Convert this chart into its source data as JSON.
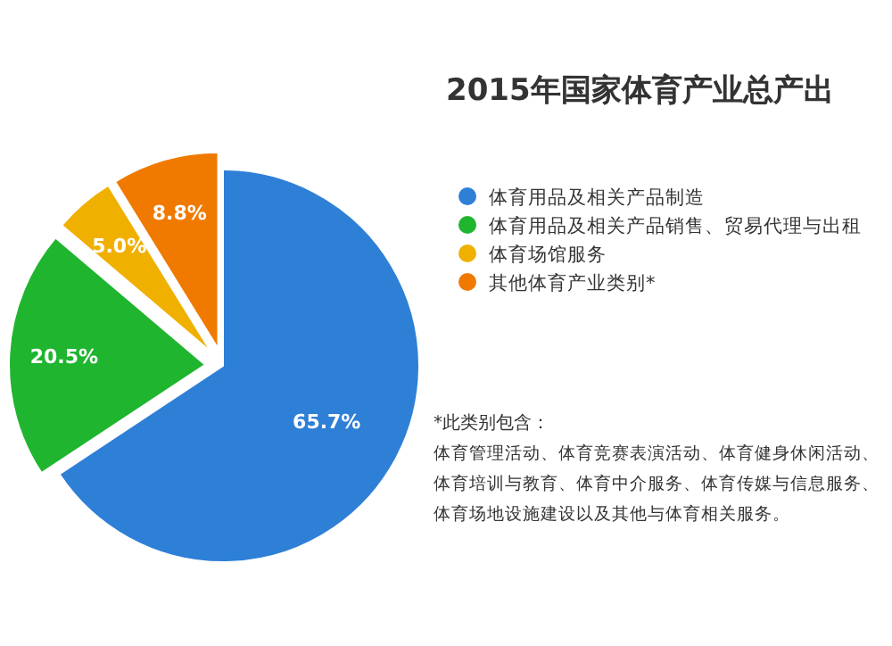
{
  "chart_data": {
    "type": "pie",
    "title": "2015年国家体育产业总产出",
    "categories": [
      "体育用品及相关产品制造",
      "体育用品及相关产品销售、贸易代理与出租",
      "体育场馆服务",
      "其他体育产业类别*"
    ],
    "values": [
      65.7,
      20.5,
      5.0,
      8.8
    ],
    "colors": [
      "#2e7fd6",
      "#1fb52f",
      "#f0b000",
      "#f07a00"
    ],
    "value_labels": [
      "65.7%",
      "20.5%",
      "5.0%",
      "8.8%"
    ],
    "legend": "right",
    "annotations": [
      "*此类别包含：",
      "体育管理活动、体育竞赛表演活动、体育健身休闲活动、",
      "体育培训与教育、体育中介服务、体育传媒与信息服务、",
      "体育场地设施建设以及其他与体育相关服务。"
    ]
  }
}
